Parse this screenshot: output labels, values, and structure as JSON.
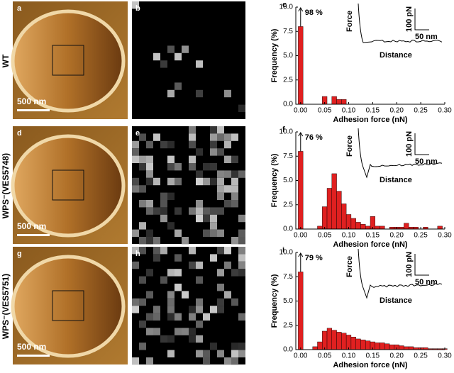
{
  "rows": [
    {
      "label": "WT",
      "image_letter": "a",
      "scale_bar": "500 nm",
      "map_letter": "b"
    },
    {
      "label": "WPS⁻(VES5748)",
      "image_letter": "d",
      "scale_bar": "500 nm",
      "map_letter": "e"
    },
    {
      "label": "WPS⁻(VES5751)",
      "image_letter": "g",
      "scale_bar": "500 nm",
      "map_letter": "h"
    }
  ],
  "chart_data": [
    {
      "type": "bar",
      "panel": "c",
      "annotation": "98 %",
      "xlabel": "Adhesion force (nN)",
      "ylabel": "Frequency (%)",
      "color": "#e02020",
      "x": [
        0,
        0.01,
        0.02,
        0.03,
        0.04,
        0.05,
        0.06,
        0.07,
        0.08,
        0.09,
        0.1,
        0.11,
        0.12,
        0.13,
        0.14,
        0.15,
        0.16,
        0.17,
        0.18,
        0.19,
        0.2,
        0.21,
        0.22,
        0.23,
        0.24,
        0.25,
        0.26,
        0.27,
        0.28,
        0.29,
        0.3
      ],
      "values": [
        8,
        0,
        0,
        0,
        0,
        0.8,
        0,
        0.8,
        0.5,
        0.5,
        0,
        0,
        0,
        0,
        0,
        0,
        0,
        0,
        0,
        0,
        0,
        0,
        0,
        0,
        0,
        0,
        0,
        0,
        0,
        0,
        0
      ],
      "xlim": [
        -0.01,
        0.3
      ],
      "ylim": [
        0,
        10
      ],
      "xticks": [
        {
          "value": 0,
          "label": "0.00"
        },
        {
          "value": 0.05,
          "label": "0.05"
        },
        {
          "value": 0.1,
          "label": "0.10"
        },
        {
          "value": 0.15,
          "label": "0.15"
        },
        {
          "value": 0.2,
          "label": "0.20"
        },
        {
          "value": 0.25,
          "label": "0.25"
        },
        {
          "value": 0.3,
          "label": "0.30"
        }
      ],
      "yticks": [
        {
          "value": 0,
          "label": "0.0"
        },
        {
          "value": 2.5,
          "label": "2.5"
        },
        {
          "value": 5,
          "label": "5.0"
        },
        {
          "value": 7.5,
          "label": "7.5"
        },
        {
          "value": 10,
          "label": "10.0"
        }
      ],
      "inset": {
        "y_label": "Force",
        "x_label": "Distance",
        "y_scale": "100 pN",
        "x_scale": "50 nm"
      }
    },
    {
      "type": "bar",
      "panel": "f",
      "annotation": "76 %",
      "xlabel": "Adhesion force (nN)",
      "ylabel": "Frequency (%)",
      "color": "#e02020",
      "x": [
        0,
        0.01,
        0.02,
        0.03,
        0.04,
        0.05,
        0.06,
        0.07,
        0.08,
        0.09,
        0.1,
        0.11,
        0.12,
        0.13,
        0.14,
        0.15,
        0.16,
        0.17,
        0.18,
        0.19,
        0.2,
        0.21,
        0.22,
        0.23,
        0.24,
        0.25,
        0.26,
        0.27,
        0.28,
        0.29,
        0.3
      ],
      "values": [
        8,
        0,
        0,
        0,
        0.3,
        2.3,
        4.2,
        5.7,
        3.9,
        2.6,
        1.5,
        1.1,
        0.7,
        0.5,
        0.3,
        1.3,
        0.3,
        0.3,
        0,
        0.2,
        0.2,
        0.2,
        0.6,
        0.2,
        0.2,
        0,
        0.2,
        0,
        0,
        0.3,
        0
      ],
      "xlim": [
        -0.01,
        0.3
      ],
      "ylim": [
        0,
        10
      ],
      "xticks": [
        {
          "value": 0,
          "label": "0.00"
        },
        {
          "value": 0.05,
          "label": "0.05"
        },
        {
          "value": 0.1,
          "label": "0.10"
        },
        {
          "value": 0.15,
          "label": "0.15"
        },
        {
          "value": 0.2,
          "label": "0.20"
        },
        {
          "value": 0.25,
          "label": "0.25"
        },
        {
          "value": 0.3,
          "label": "0.30"
        }
      ],
      "yticks": [
        {
          "value": 0,
          "label": "0.0"
        },
        {
          "value": 2.5,
          "label": "2.5"
        },
        {
          "value": 5,
          "label": "5.0"
        },
        {
          "value": 7.5,
          "label": "7.5"
        },
        {
          "value": 10,
          "label": "10.0"
        }
      ],
      "inset": {
        "y_label": "Force",
        "x_label": "Distance",
        "y_scale": "100 pN",
        "x_scale": "50 nm"
      }
    },
    {
      "type": "bar",
      "panel": "i",
      "annotation": "79 %",
      "xlabel": "Adhesion force (nN)",
      "ylabel": "Frequency (%)",
      "color": "#e02020",
      "x": [
        0,
        0.01,
        0.02,
        0.03,
        0.04,
        0.05,
        0.06,
        0.07,
        0.08,
        0.09,
        0.1,
        0.11,
        0.12,
        0.13,
        0.14,
        0.15,
        0.16,
        0.17,
        0.18,
        0.19,
        0.2,
        0.21,
        0.22,
        0.23,
        0.24,
        0.25,
        0.26,
        0.27,
        0.28,
        0.29,
        0.3
      ],
      "values": [
        8,
        0,
        0,
        0.3,
        0.8,
        1.9,
        2.2,
        2,
        1.8,
        1.7,
        1.5,
        1.3,
        1.1,
        1,
        0.9,
        0.8,
        0.7,
        0.7,
        0.6,
        0.5,
        0.5,
        0.4,
        0.3,
        0.3,
        0.2,
        0.2,
        0.2,
        0.1,
        0.1,
        0.1,
        0.1
      ],
      "xlim": [
        -0.01,
        0.3
      ],
      "ylim": [
        0,
        10
      ],
      "xticks": [
        {
          "value": 0,
          "label": "0.00"
        },
        {
          "value": 0.05,
          "label": "0.05"
        },
        {
          "value": 0.1,
          "label": "0.10"
        },
        {
          "value": 0.15,
          "label": "0.15"
        },
        {
          "value": 0.2,
          "label": "0.20"
        },
        {
          "value": 0.25,
          "label": "0.25"
        },
        {
          "value": 0.3,
          "label": "0.30"
        }
      ],
      "yticks": [
        {
          "value": 0,
          "label": "0.0"
        },
        {
          "value": 2.5,
          "label": "2.5"
        },
        {
          "value": 5,
          "label": "5.0"
        },
        {
          "value": 7.5,
          "label": "7.5"
        },
        {
          "value": 10,
          "label": "10.0"
        }
      ],
      "inset": {
        "y_label": "Force",
        "x_label": "Distance",
        "y_scale": "100 pN",
        "x_scale": "50 nm"
      }
    }
  ]
}
